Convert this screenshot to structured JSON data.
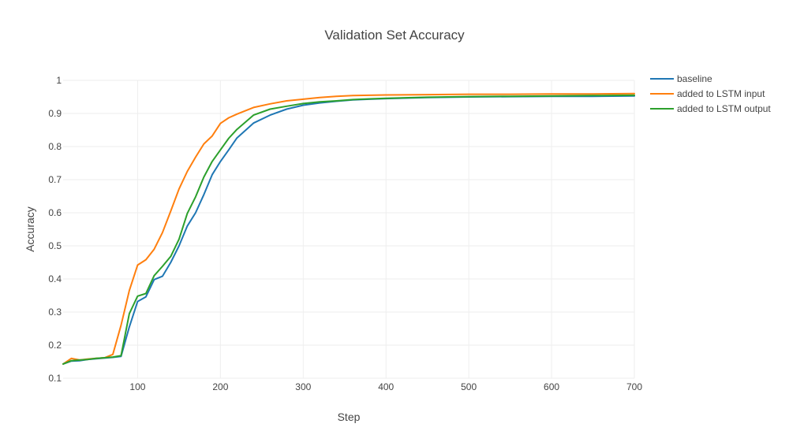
{
  "chart_data": {
    "type": "line",
    "title": "Validation Set Accuracy",
    "xlabel": "Step",
    "ylabel": "Accuracy",
    "xlim": [
      10,
      700
    ],
    "ylim": [
      0.1,
      1.0
    ],
    "xticks": [
      100,
      200,
      300,
      400,
      500,
      600,
      700
    ],
    "yticks": [
      0.1,
      0.2,
      0.3,
      0.4,
      0.5,
      0.6,
      0.7,
      0.8,
      0.9,
      1
    ],
    "ytick_labels": [
      "0.1",
      "0.2",
      "0.3",
      "0.4",
      "0.5",
      "0.6",
      "0.7",
      "0.8",
      "0.9",
      "1"
    ],
    "grid": true,
    "legend_position": "top-right",
    "x": [
      10,
      20,
      30,
      40,
      50,
      60,
      70,
      80,
      90,
      100,
      110,
      120,
      130,
      140,
      150,
      160,
      170,
      180,
      190,
      200,
      210,
      220,
      240,
      260,
      280,
      300,
      320,
      340,
      360,
      380,
      400,
      450,
      500,
      550,
      600,
      650,
      700
    ],
    "series": [
      {
        "name": "baseline",
        "color": "#1f77b4",
        "values": [
          0.143,
          0.152,
          0.153,
          0.157,
          0.159,
          0.161,
          0.163,
          0.166,
          0.255,
          0.332,
          0.346,
          0.398,
          0.408,
          0.45,
          0.5,
          0.56,
          0.6,
          0.655,
          0.715,
          0.755,
          0.79,
          0.826,
          0.871,
          0.895,
          0.913,
          0.925,
          0.932,
          0.937,
          0.941,
          0.943,
          0.945,
          0.948,
          0.95,
          0.951,
          0.952,
          0.952,
          0.953
        ]
      },
      {
        "name": "added to LSTM input",
        "color": "#ff7f0e",
        "values": [
          0.143,
          0.16,
          0.155,
          0.158,
          0.16,
          0.162,
          0.172,
          0.26,
          0.365,
          0.442,
          0.458,
          0.49,
          0.54,
          0.605,
          0.672,
          0.725,
          0.768,
          0.808,
          0.832,
          0.87,
          0.887,
          0.898,
          0.918,
          0.929,
          0.938,
          0.943,
          0.948,
          0.952,
          0.954,
          0.955,
          0.956,
          0.957,
          0.958,
          0.958,
          0.959,
          0.959,
          0.96
        ]
      },
      {
        "name": "added to LSTM output",
        "color": "#2ca02c",
        "values": [
          0.143,
          0.153,
          0.155,
          0.157,
          0.16,
          0.162,
          0.164,
          0.168,
          0.295,
          0.348,
          0.356,
          0.41,
          0.438,
          0.468,
          0.52,
          0.598,
          0.648,
          0.708,
          0.755,
          0.79,
          0.825,
          0.852,
          0.895,
          0.913,
          0.922,
          0.93,
          0.935,
          0.938,
          0.942,
          0.944,
          0.946,
          0.949,
          0.951,
          0.952,
          0.953,
          0.954,
          0.955
        ]
      }
    ]
  }
}
